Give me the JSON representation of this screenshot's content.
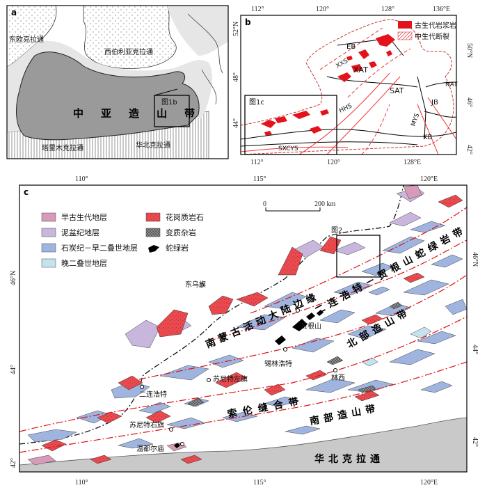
{
  "panel_a": {
    "letter": "a",
    "east_europe": "东欧克拉通",
    "siberia": "西伯利亚克拉通",
    "central_asia": [
      "中",
      "亚",
      "造",
      "山",
      "带"
    ],
    "tarim": "塔里木克拉通",
    "north_china": "华北克拉通",
    "box_label": "图1b"
  },
  "panel_b": {
    "letter": "b",
    "lon_ticks": [
      "112°",
      "120°",
      "128°",
      "136°E"
    ],
    "lon_bottom": [
      "112°",
      "120°",
      "128°E"
    ],
    "lat_left": [
      "52°N",
      "48°",
      "44°"
    ],
    "lat_right": [
      "50°N",
      "46°",
      "42°"
    ],
    "legend_paleozoic": "古生代岩浆岩",
    "legend_fault": "中生代断裂",
    "units": [
      "EB",
      "XAT",
      "SAT",
      "NAT",
      "JB",
      "KB",
      "HHS",
      "MYS",
      "XXS",
      "SXCYS"
    ],
    "box_label": "图1c"
  },
  "panel_c": {
    "letter": "c",
    "lon_top": [
      "110°",
      "115°",
      "120°E"
    ],
    "lon_bottom": [
      "110°",
      "115°",
      "120°E"
    ],
    "lat_left": [
      "46°N",
      "44°",
      "42°"
    ],
    "lat_right": [
      "46°N",
      "44°",
      "42°"
    ],
    "scale_zero": "0",
    "scale_text": "200 km",
    "box_label": "图2",
    "legend": [
      {
        "label": "早古生代地层",
        "color": "#d79ab8"
      },
      {
        "label": "泥盆纪地层",
        "color": "#c9b6dd"
      },
      {
        "label": "石炭纪－早二叠世地层",
        "color": "#9fb4de"
      },
      {
        "label": "晚二叠世地层",
        "color": "#c4e3ef"
      },
      {
        "label": "花岗质岩石",
        "color": "#e84a4f"
      },
      {
        "label": "变质杂岩",
        "color": "#777777"
      },
      {
        "label": "蛇绿岩",
        "color": "#000000"
      }
    ],
    "belts": {
      "south_mongolia": [
        "南",
        "蒙",
        "古",
        "活",
        "动",
        "大",
        "陆",
        "边",
        "缘"
      ],
      "erlian": [
        "二",
        "连",
        "浩",
        "特",
        "－",
        "贺",
        "根",
        "山",
        "蛇",
        "绿",
        "岩",
        "带"
      ],
      "northern": [
        "北",
        "部",
        "造",
        "山",
        "带"
      ],
      "solon": [
        "索",
        "伦",
        "缝",
        "合",
        "带"
      ],
      "southern": [
        "南",
        "部",
        "造",
        "山",
        "带"
      ],
      "north_china": [
        "华",
        "北",
        "克",
        "拉",
        "通"
      ]
    },
    "places": [
      "东乌旗",
      "贺根山",
      "锡林浩特",
      "苏尼特左旗",
      "林西",
      "二连浩特",
      "苏尼特右旗",
      "温都尔庙"
    ]
  }
}
